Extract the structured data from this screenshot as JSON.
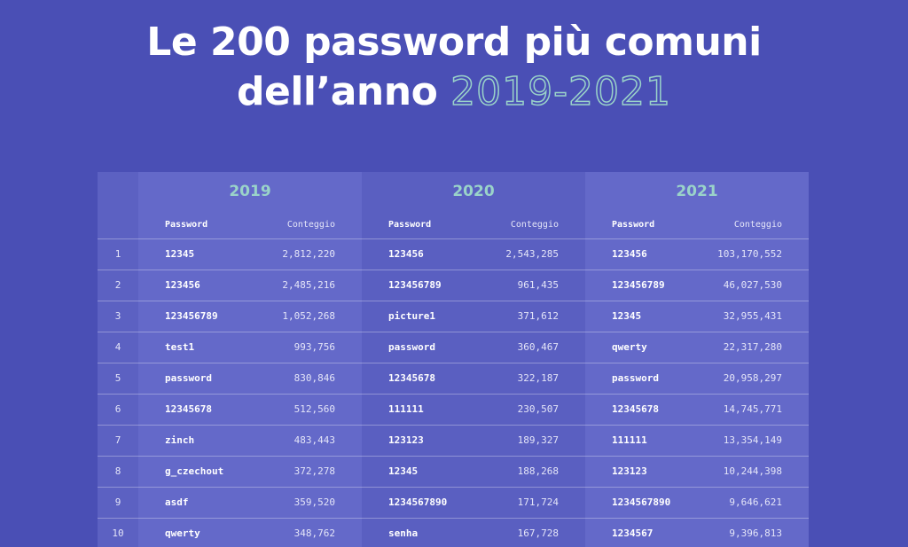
{
  "title": {
    "line1": "Le 200 password più comuni",
    "line2_prefix": "dell’anno",
    "line2_highlight": "2019-2021"
  },
  "table": {
    "years": [
      "2019",
      "2020",
      "2021"
    ],
    "col_password": "Password",
    "col_count": "Conteggio",
    "rows": [
      {
        "rank": "1",
        "cells": [
          [
            "12345",
            "2,812,220"
          ],
          [
            "123456",
            "2,543,285"
          ],
          [
            "123456",
            "103,170,552"
          ]
        ]
      },
      {
        "rank": "2",
        "cells": [
          [
            "123456",
            "2,485,216"
          ],
          [
            "123456789",
            "961,435"
          ],
          [
            "123456789",
            "46,027,530"
          ]
        ]
      },
      {
        "rank": "3",
        "cells": [
          [
            "123456789",
            "1,052,268"
          ],
          [
            "picture1",
            "371,612"
          ],
          [
            "12345",
            "32,955,431"
          ]
        ]
      },
      {
        "rank": "4",
        "cells": [
          [
            "test1",
            "993,756"
          ],
          [
            "password",
            "360,467"
          ],
          [
            "qwerty",
            "22,317,280"
          ]
        ]
      },
      {
        "rank": "5",
        "cells": [
          [
            "password",
            "830,846"
          ],
          [
            "12345678",
            "322,187"
          ],
          [
            "password",
            "20,958,297"
          ]
        ]
      },
      {
        "rank": "6",
        "cells": [
          [
            "12345678",
            "512,560"
          ],
          [
            "111111",
            "230,507"
          ],
          [
            "12345678",
            "14,745,771"
          ]
        ]
      },
      {
        "rank": "7",
        "cells": [
          [
            "zinch",
            "483,443"
          ],
          [
            "123123",
            "189,327"
          ],
          [
            "111111",
            "13,354,149"
          ]
        ]
      },
      {
        "rank": "8",
        "cells": [
          [
            "g_czechout",
            "372,278"
          ],
          [
            "12345",
            "188,268"
          ],
          [
            "123123",
            "10,244,398"
          ]
        ]
      },
      {
        "rank": "9",
        "cells": [
          [
            "asdf",
            "359,520"
          ],
          [
            "1234567890",
            "171,724"
          ],
          [
            "1234567890",
            "9,646,621"
          ]
        ]
      },
      {
        "rank": "10",
        "cells": [
          [
            "qwerty",
            "348,762"
          ],
          [
            "senha",
            "167,728"
          ],
          [
            "1234567",
            "9,396,813"
          ]
        ]
      }
    ]
  },
  "colors": {
    "background": "#4a4fb5",
    "accent": "#9ad3c9"
  }
}
